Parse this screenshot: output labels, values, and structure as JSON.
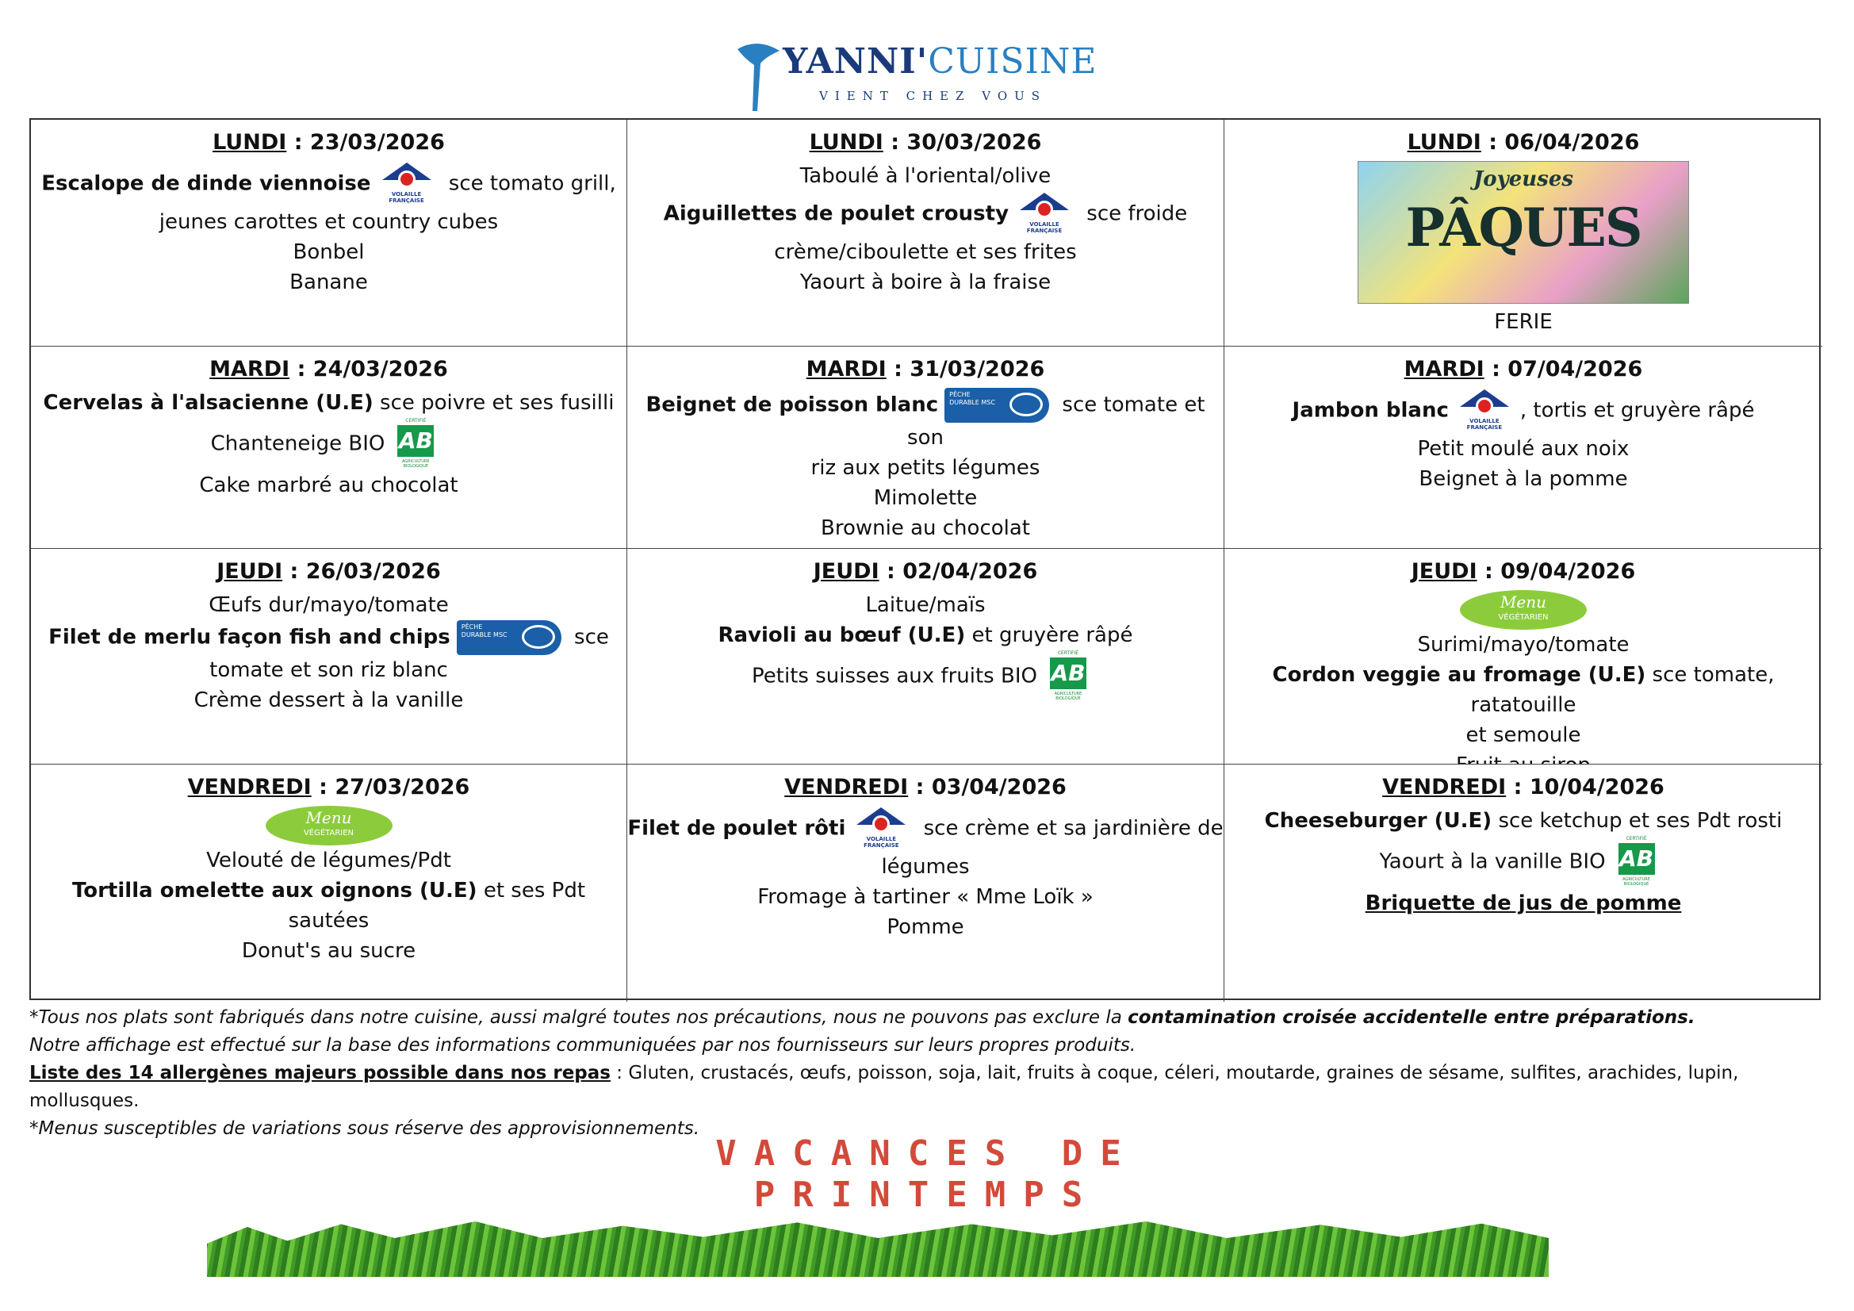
{
  "header": {
    "brand": "YANNI'",
    "brand2": "CUISINE",
    "tagline": "VIENT CHEZ VOUS"
  },
  "logos": {
    "volaille": "VOLAILLE FRANÇAISE",
    "msc": "PÊCHE DURABLE MSC",
    "ab": "AB",
    "ab_top": "CERTIFIÉ",
    "ab_bottom": "AGRICULTURE BIOLOGIQUE",
    "veg_menu": "Menu",
    "veg_label": "VÉGÉTARIEN",
    "paques_1": "Joyeuses",
    "paques_2": "PÂQUES"
  },
  "cells": [
    {
      "day": "LUNDI",
      "date": "23/03/2026",
      "lines": [
        [
          {
            "text": "Escalope de dinde viennoise",
            "style": "b"
          },
          {
            "logo": "volaille"
          },
          {
            "text": " sce tomato grill,"
          }
        ],
        [
          {
            "text": "jeunes carottes et country cubes"
          }
        ],
        [
          {
            "text": "Bonbel"
          }
        ],
        [
          {
            "text": "Banane"
          }
        ]
      ]
    },
    {
      "day": "LUNDI",
      "date": "30/03/2026",
      "lines": [
        [
          {
            "text": "Taboulé à l'oriental/olive"
          }
        ],
        [
          {
            "text": "Aiguillettes de poulet crousty",
            "style": "b"
          },
          {
            "logo": "volaille"
          },
          {
            "text": " sce froide"
          }
        ],
        [
          {
            "text": "crème/ciboulette et ses frites"
          }
        ],
        [
          {
            "text": "Yaourt à boire à la fraise"
          }
        ]
      ]
    },
    {
      "day": "LUNDI",
      "date": "06/04/2026",
      "lines": [
        [
          {
            "logo": "paques"
          }
        ],
        [
          {
            "text": "FERIE"
          }
        ]
      ]
    },
    {
      "day": "MARDI",
      "date": "24/03/2026",
      "lines": [
        [
          {
            "text": "Cervelas à l'alsacienne (U.E)",
            "style": "b"
          },
          {
            "text": " sce poivre et ses fusilli"
          }
        ],
        [
          {
            "text": "Chanteneige BIO"
          },
          {
            "logo": "ab"
          }
        ],
        [
          {
            "text": "Cake marbré au chocolat"
          }
        ]
      ]
    },
    {
      "day": "MARDI",
      "date": "31/03/2026",
      "lines": [
        [
          {
            "text": "Beignet de poisson blanc",
            "style": "b"
          },
          {
            "logo": "msc"
          },
          {
            "text": " sce tomate et son"
          }
        ],
        [
          {
            "text": "riz aux petits légumes"
          }
        ],
        [
          {
            "text": "Mimolette"
          }
        ],
        [
          {
            "text": "Brownie au chocolat"
          }
        ]
      ]
    },
    {
      "day": "MARDI",
      "date": "07/04/2026",
      "lines": [
        [
          {
            "text": "Jambon blanc",
            "style": "b"
          },
          {
            "logo": "volaille"
          },
          {
            "text": ", tortis et gruyère râpé"
          }
        ],
        [
          {
            "text": "Petit moulé aux noix"
          }
        ],
        [
          {
            "text": "Beignet à la pomme"
          }
        ]
      ]
    },
    {
      "day": "JEUDI",
      "date": "26/03/2026",
      "lines": [
        [
          {
            "text": "Œufs dur/mayo/tomate"
          }
        ],
        [
          {
            "text": "Filet de merlu façon fish and chips",
            "style": "b"
          },
          {
            "logo": "msc"
          },
          {
            "text": " sce"
          }
        ],
        [
          {
            "text": "tomate et son riz blanc"
          }
        ],
        [
          {
            "text": "Crème dessert à la vanille"
          }
        ]
      ]
    },
    {
      "day": "JEUDI",
      "date": "02/04/2026",
      "lines": [
        [
          {
            "text": "Laitue/maïs"
          }
        ],
        [
          {
            "text": "Ravioli au bœuf (U.E)",
            "style": "b"
          },
          {
            "text": " et gruyère râpé"
          }
        ],
        [
          {
            "text": "Petits suisses aux fruits BIO"
          },
          {
            "logo": "ab"
          }
        ]
      ]
    },
    {
      "day": "JEUDI",
      "date": "09/04/2026",
      "lines": [
        [
          {
            "logo": "veg"
          }
        ],
        [
          {
            "text": "Surimi/mayo/tomate"
          }
        ],
        [
          {
            "text": "Cordon veggie au fromage (U.E)",
            "style": "b"
          },
          {
            "text": " sce tomate, ratatouille"
          }
        ],
        [
          {
            "text": "et semoule"
          }
        ],
        [
          {
            "text": "Fruit au sirop"
          }
        ]
      ]
    },
    {
      "day": "VENDREDI",
      "date": "27/03/2026",
      "lines": [
        [
          {
            "logo": "veg"
          }
        ],
        [
          {
            "text": "Velouté de légumes/Pdt"
          }
        ],
        [
          {
            "text": "Tortilla omelette aux oignons (U.E)",
            "style": "b"
          },
          {
            "text": "  et ses Pdt sautées"
          }
        ],
        [
          {
            "text": "Donut's au sucre"
          }
        ]
      ]
    },
    {
      "day": "VENDREDI",
      "date": "03/04/2026",
      "lines": [
        [
          {
            "text": "Filet de poulet rôti",
            "style": "b"
          },
          {
            "logo": "volaille"
          },
          {
            "text": " sce crème et sa jardinière de"
          }
        ],
        [
          {
            "text": "légumes"
          }
        ],
        [
          {
            "text": "Fromage à tartiner « Mme Loïk »"
          }
        ],
        [
          {
            "text": "Pomme"
          }
        ]
      ]
    },
    {
      "day": "VENDREDI",
      "date": "10/04/2026",
      "lines": [
        [
          {
            "text": "Cheeseburger (U.E)",
            "style": "b"
          },
          {
            "text": " sce ketchup et ses Pdt rosti"
          }
        ],
        [
          {
            "text": "Yaourt à la vanille BIO"
          },
          {
            "logo": "ab"
          }
        ],
        [
          {
            "text": "Briquette de jus de pomme",
            "style": "bu"
          }
        ]
      ]
    }
  ],
  "footer": {
    "line1_a": "*Tous nos plats sont fabriqués dans notre cuisine, aussi malgré toutes nos précautions, nous ne pouvons pas exclure la ",
    "line1_b": "contamination croisée accidentelle entre préparations.",
    "line2": "Notre affichage est effectué sur la base des informations communiquées par nos fournisseurs sur leurs propres produits.",
    "line3_label": "Liste des 14 allergènes majeurs possible dans nos repas",
    "line3_text": " : Gluten, crustacés, œufs, poisson, soja, lait, fruits à coque, céleri, moutarde, graines de sésame, sulfites, arachides, lupin, mollusques.",
    "line4": "*Menus susceptibles de variations sous réserve des approvisionnements."
  },
  "banner": {
    "line1": "VACANCES DE",
    "line2": "PRINTEMPS"
  }
}
